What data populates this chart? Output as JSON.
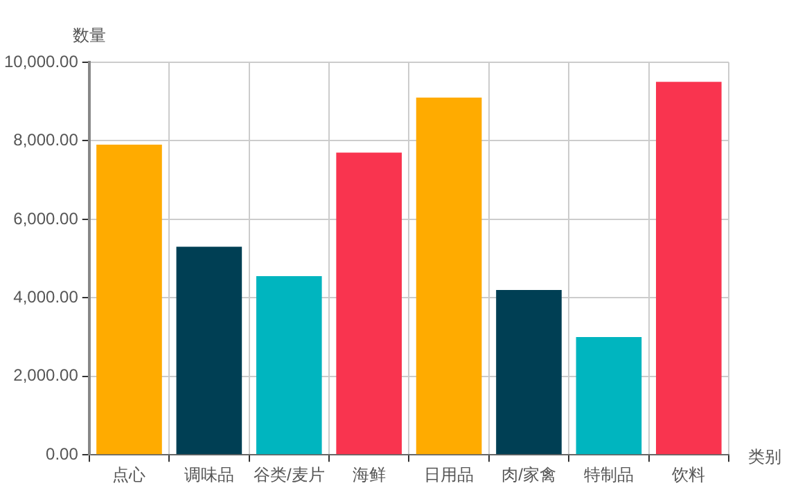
{
  "chart_data": {
    "type": "bar",
    "xlabel": "类别",
    "ylabel": "数量",
    "categories": [
      "点心",
      "调味品",
      "谷类/麦片",
      "海鲜",
      "日用品",
      "肉/家禽",
      "特制品",
      "饮料"
    ],
    "values": [
      7900,
      5300,
      4550,
      7700,
      9100,
      4200,
      3000,
      9500
    ],
    "colors": [
      "#ffab00",
      "#003f54",
      "#00b5bf",
      "#f9344f",
      "#ffab00",
      "#003f54",
      "#00b5bf",
      "#f9344f"
    ],
    "ylim": [
      0,
      10000
    ],
    "yticks": [
      {
        "value": 0,
        "label": "0.00"
      },
      {
        "value": 2000,
        "label": "2,000.00"
      },
      {
        "value": 4000,
        "label": "4,000.00"
      },
      {
        "value": 6000,
        "label": "6,000.00"
      },
      {
        "value": 8000,
        "label": "8,000.00"
      },
      {
        "value": 10000,
        "label": "10,000.00"
      }
    ],
    "grid": true,
    "legend": false
  }
}
